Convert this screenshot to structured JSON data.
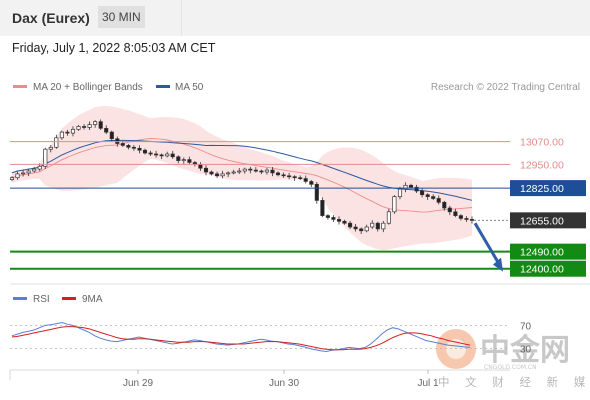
{
  "header": {
    "instrument": "Dax (Eurex)",
    "timeframe": "30 MIN"
  },
  "datetime": "Friday, July 1, 2022 8:05:03 AM CET",
  "credit": "Research © 2022 Trading Central",
  "watermark": {
    "brand": "中金网",
    "domain": "CNGOLD.COM.CN",
    "tagline": "中 文 财 经 新 媒 体"
  },
  "colors": {
    "bollinger": "#f08a8a",
    "ma50": "#2c5a9e",
    "resistance": "#e38b8b",
    "pivot": "#1f4e99",
    "support": "#138a13",
    "current": "#333333",
    "rsi": "#5b7fd6",
    "rsi_ma": "#d42020",
    "arrow": "#2e5ea8"
  },
  "chart_data": [
    {
      "type": "candlestick",
      "legend": [
        {
          "name": "MA 20 + Bollinger Bands",
          "color": "#f08a8a"
        },
        {
          "name": "MA 50",
          "color": "#2c5a9e"
        }
      ],
      "levels": [
        {
          "value": 13070.0,
          "label": "13070.00",
          "kind": "resistance"
        },
        {
          "value": 12950.0,
          "label": "12950.00",
          "kind": "resistance"
        },
        {
          "value": 12825.0,
          "label": "12825.00",
          "kind": "pivot"
        },
        {
          "value": 12655.0,
          "label": "12655.00",
          "kind": "current"
        },
        {
          "value": 12490.0,
          "label": "12490.00",
          "kind": "support"
        },
        {
          "value": 12400.0,
          "label": "12400.00",
          "kind": "support"
        }
      ],
      "ylim": [
        12330,
        13300
      ],
      "x_ticks": [
        "Jun 29",
        "Jun 30",
        "Jul 1"
      ],
      "closes": [
        12880,
        12900,
        12905,
        12915,
        12925,
        12940,
        13030,
        13040,
        13090,
        13120,
        13115,
        13135,
        13150,
        13145,
        13160,
        13175,
        13140,
        13120,
        13085,
        13060,
        13050,
        13040,
        13035,
        13025,
        13010,
        13005,
        13000,
        12995,
        13005,
        12990,
        12970,
        12975,
        12960,
        12950,
        12930,
        12910,
        12900,
        12890,
        12900,
        12905,
        12910,
        12915,
        12925,
        12920,
        12915,
        12910,
        12920,
        12905,
        12895,
        12890,
        12885,
        12880,
        12875,
        12860,
        12845,
        12760,
        12680,
        12670,
        12660,
        12650,
        12640,
        12620,
        12610,
        12600,
        12620,
        12640,
        12610,
        12640,
        12700,
        12780,
        12820,
        12840,
        12830,
        12810,
        12790,
        12780,
        12770,
        12750,
        12720,
        12700,
        12680,
        12665,
        12660,
        12655
      ]
    },
    {
      "type": "line",
      "series": [
        {
          "name": "RSI",
          "color": "#5b7fd6"
        },
        {
          "name": "9MA",
          "color": "#d42020"
        }
      ],
      "ylim": [
        0,
        100
      ],
      "y_ticks": [
        70,
        30
      ],
      "rsi": [
        52,
        55,
        58,
        60,
        62,
        66,
        70,
        71,
        73,
        75,
        72,
        70,
        66,
        62,
        58,
        52,
        48,
        45,
        43,
        42,
        44,
        46,
        48,
        50,
        48,
        46,
        44,
        42,
        40,
        38,
        39,
        41,
        43,
        45,
        44,
        42,
        40,
        38,
        37,
        36,
        37,
        38,
        40,
        42,
        44,
        46,
        45,
        43,
        42,
        40,
        38,
        37,
        35,
        33,
        30,
        28,
        26,
        25,
        27,
        28,
        30,
        32,
        31,
        30,
        32,
        38,
        46,
        55,
        62,
        66,
        64,
        60,
        56,
        52,
        48,
        44,
        42,
        40,
        38,
        36,
        35,
        34,
        33,
        32
      ],
      "rsi_ma": [
        50,
        51,
        53,
        55,
        57,
        59,
        61,
        63,
        65,
        67,
        68,
        68,
        67,
        66,
        64,
        61,
        58,
        55,
        52,
        49,
        47,
        46,
        46,
        47,
        47,
        46,
        45,
        44,
        43,
        42,
        41,
        41,
        41,
        42,
        42,
        42,
        41,
        40,
        39,
        38,
        38,
        38,
        38,
        39,
        40,
        41,
        42,
        42,
        42,
        41,
        40,
        39,
        38,
        36,
        34,
        32,
        30,
        29,
        28,
        28,
        28,
        29,
        29,
        29,
        30,
        32,
        35,
        39,
        44,
        49,
        53,
        56,
        57,
        57,
        56,
        54,
        52,
        49,
        47,
        44,
        42,
        40,
        38,
        36
      ]
    }
  ]
}
